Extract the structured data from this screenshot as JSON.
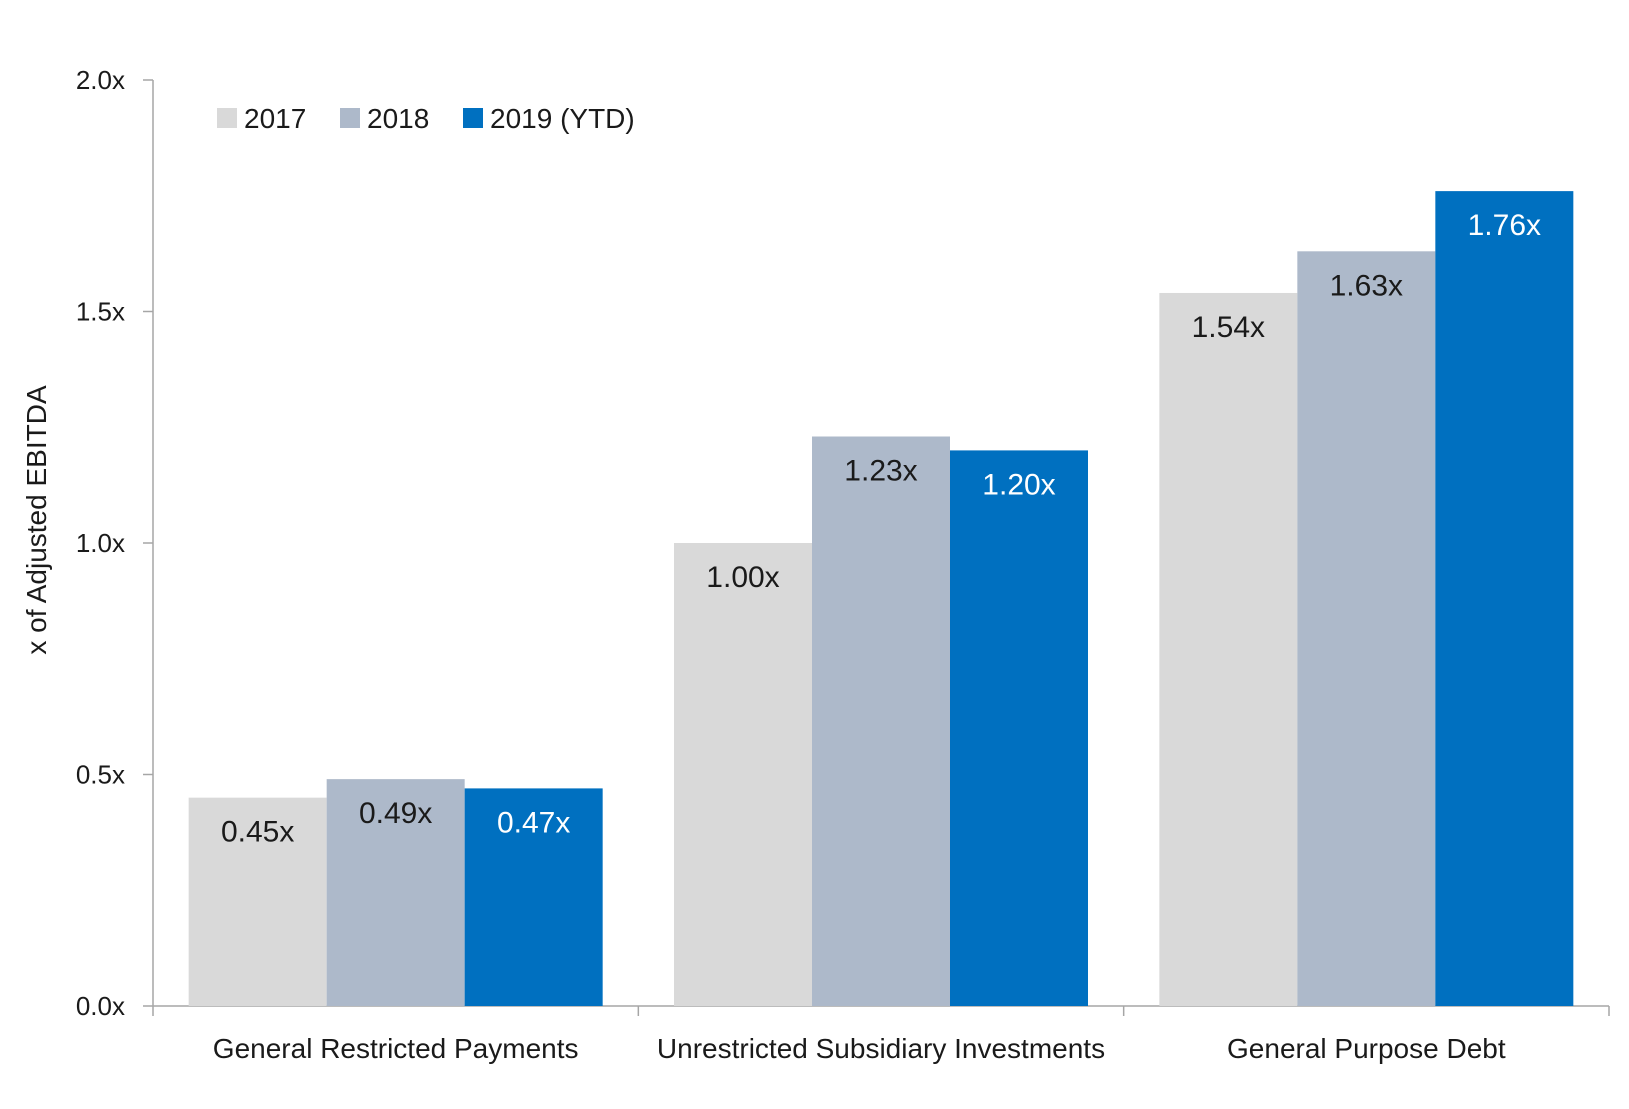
{
  "chart_data": {
    "type": "bar",
    "title": "",
    "xlabel": "",
    "ylabel": "x of Adjusted EBITDA",
    "ylim": [
      0,
      2.0
    ],
    "yticks": [
      0.0,
      0.5,
      1.0,
      1.5,
      2.0
    ],
    "ytick_labels": [
      "0.0x",
      "0.5x",
      "1.0x",
      "1.5x",
      "2.0x"
    ],
    "grid": false,
    "legend_position": "top-left",
    "categories": [
      "General Restricted Payments",
      "Unrestricted Subsidiary Investments",
      "General Purpose Debt"
    ],
    "series": [
      {
        "name": "2017",
        "color": "#D9D9D9",
        "label_color": "#1a1a1a",
        "values": [
          0.45,
          1.0,
          1.54
        ],
        "labels": [
          "0.45x",
          "1.00x",
          "1.54x"
        ]
      },
      {
        "name": "2018",
        "color": "#ADB9CA",
        "label_color": "#1a1a1a",
        "values": [
          0.49,
          1.23,
          1.63
        ],
        "labels": [
          "0.49x",
          "1.23x",
          "1.63x"
        ]
      },
      {
        "name": "2019 (YTD)",
        "color": "#0070C0",
        "label_color": "#ffffff",
        "values": [
          0.47,
          1.2,
          1.76
        ],
        "labels": [
          "0.47x",
          "1.20x",
          "1.76x"
        ]
      }
    ]
  }
}
